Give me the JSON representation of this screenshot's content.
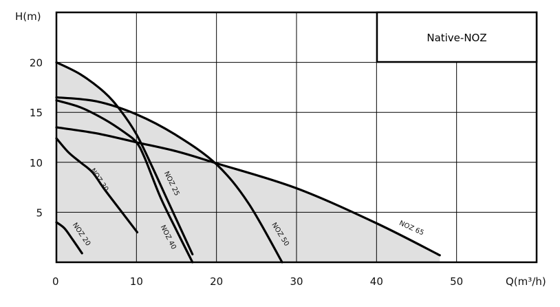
{
  "chart_data": {
    "type": "line",
    "title": "Native-NOZ",
    "xlabel": "Q(m³/h)",
    "ylabel": "H(m)",
    "xlim": [
      0,
      60
    ],
    "ylim": [
      0,
      25
    ],
    "xticks": [
      "0",
      "10",
      "20",
      "30",
      "40",
      "50"
    ],
    "yticks": [
      "5",
      "10",
      "15",
      "20"
    ],
    "grid": true,
    "fill_color": "#e0e0e0",
    "series": [
      {
        "name": "NOZ 20",
        "points": [
          [
            0,
            4.0
          ],
          [
            1,
            3.4
          ],
          [
            2,
            2.3
          ],
          [
            3.2,
            0.9
          ]
        ]
      },
      {
        "name": "NOZ 30",
        "points": [
          [
            0,
            12.4
          ],
          [
            1.5,
            11
          ],
          [
            3,
            10
          ],
          [
            4.5,
            9
          ],
          [
            6,
            7.3
          ],
          [
            8,
            5.2
          ],
          [
            10.1,
            3.0
          ]
        ]
      },
      {
        "name": "NOZ 40",
        "points": [
          [
            0,
            16.2
          ],
          [
            3,
            15.5
          ],
          [
            6,
            14.3
          ],
          [
            8.5,
            13
          ],
          [
            10,
            12
          ],
          [
            11,
            10.5
          ],
          [
            13,
            6.5
          ],
          [
            15,
            3.2
          ],
          [
            17,
            0
          ]
        ]
      },
      {
        "name": "NOZ 25",
        "points": [
          [
            0,
            20
          ],
          [
            3,
            18.8
          ],
          [
            6,
            17
          ],
          [
            8,
            15.2
          ],
          [
            10,
            12.8
          ],
          [
            12,
            9.5
          ],
          [
            14,
            6
          ],
          [
            17,
            0.8
          ]
        ]
      },
      {
        "name": "NOZ 50",
        "points": [
          [
            0,
            16.5
          ],
          [
            5,
            16.1
          ],
          [
            10,
            14.8
          ],
          [
            15,
            12.7
          ],
          [
            20,
            9.8
          ],
          [
            24,
            5.9
          ],
          [
            28.2,
            0
          ]
        ]
      },
      {
        "name": "NOZ 65",
        "points": [
          [
            0,
            13.5
          ],
          [
            5,
            12.9
          ],
          [
            10,
            12
          ],
          [
            15,
            11.1
          ],
          [
            20,
            9.9
          ],
          [
            30,
            7.4
          ],
          [
            40,
            3.9
          ],
          [
            47.9,
            0.7
          ]
        ]
      }
    ]
  }
}
